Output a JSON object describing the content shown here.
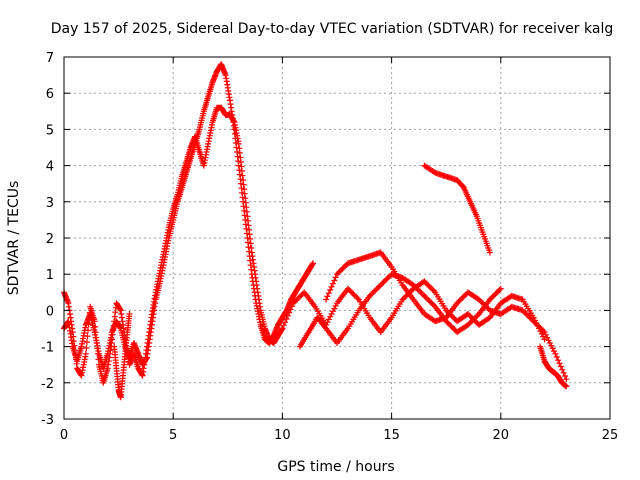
{
  "chart_data": {
    "type": "scatter",
    "title": "Day 157 of 2025, Sidereal Day-to-day VTEC variation (SDTVAR) for receiver kalg",
    "xlabel": "GPS time / hours",
    "ylabel": "SDTVAR / TECUs",
    "xlim": [
      0,
      25
    ],
    "ylim": [
      -3,
      7
    ],
    "xticks": [
      "0",
      "5",
      "10",
      "15",
      "20",
      "25"
    ],
    "yticks": [
      "-3",
      "-2",
      "-1",
      "0",
      "1",
      "2",
      "3",
      "4",
      "5",
      "6",
      "7"
    ],
    "grid": true,
    "marker": "+",
    "color": "#ff0000",
    "series": [
      {
        "name": "main-rise-a",
        "x": [
          0.0,
          0.2,
          0.4,
          0.6,
          0.8,
          1.0,
          1.2,
          1.4,
          1.6,
          1.8,
          2.0,
          2.2,
          2.4,
          2.6,
          2.8,
          3.0,
          3.2,
          3.4,
          3.6,
          3.8,
          4.0,
          4.2,
          4.4,
          4.6,
          4.8,
          5.0,
          5.2,
          5.4,
          5.6,
          5.8,
          6.0,
          6.2,
          6.4,
          6.6,
          6.8,
          7.0,
          7.2,
          7.4,
          7.6,
          7.8,
          8.0,
          8.2,
          8.4,
          8.6,
          8.8,
          9.0,
          9.2,
          9.4,
          9.6,
          9.8,
          10.0,
          10.2,
          10.4,
          10.6,
          10.8,
          11.0,
          11.2,
          11.4
        ],
        "y": [
          -0.5,
          -0.3,
          -1.0,
          -1.4,
          -1.0,
          -0.4,
          -0.1,
          -0.6,
          -1.2,
          -1.6,
          -1.2,
          -0.6,
          -0.3,
          -0.5,
          -1.0,
          -1.3,
          -0.9,
          -1.2,
          -1.5,
          -1.3,
          -0.5,
          0.3,
          0.8,
          1.4,
          2.0,
          2.5,
          3.0,
          3.4,
          3.8,
          4.2,
          4.6,
          5.0,
          5.5,
          5.9,
          6.3,
          6.6,
          6.8,
          6.5,
          5.8,
          5.0,
          4.0,
          3.0,
          2.0,
          1.0,
          0.2,
          -0.4,
          -0.8,
          -0.9,
          -0.7,
          -0.4,
          -0.2,
          0.0,
          0.3,
          0.5,
          0.7,
          0.9,
          1.1,
          1.3
        ]
      },
      {
        "name": "main-rise-b",
        "x": [
          0.0,
          0.2,
          0.4,
          0.6,
          0.8,
          1.0,
          1.2,
          1.4,
          1.6,
          1.8,
          2.0,
          2.2,
          2.4,
          2.6,
          2.8,
          3.0,
          3.2,
          3.4,
          3.6,
          3.8,
          4.0,
          4.2,
          4.4,
          4.6,
          4.8,
          5.0,
          5.2,
          5.4,
          5.6,
          5.8,
          6.0,
          6.2,
          6.4,
          6.6,
          6.8,
          7.0,
          7.2,
          7.4,
          7.6,
          7.8,
          8.0,
          8.2,
          8.4,
          8.6,
          8.8,
          9.0,
          9.2,
          9.4,
          9.6,
          9.8,
          10.0
        ],
        "y": [
          0.5,
          0.2,
          -0.6,
          -1.6,
          -1.8,
          -1.2,
          0.1,
          -0.3,
          -1.5,
          -2.0,
          -1.6,
          -0.8,
          0.2,
          0.0,
          -0.8,
          -1.5,
          -1.2,
          -1.6,
          -1.8,
          -1.0,
          -0.2,
          0.5,
          1.1,
          1.7,
          2.3,
          2.8,
          3.2,
          3.7,
          4.1,
          4.5,
          4.8,
          4.4,
          4.0,
          4.6,
          5.2,
          5.6,
          5.6,
          5.4,
          5.4,
          5.2,
          4.6,
          3.6,
          2.6,
          1.6,
          0.8,
          0.0,
          -0.5,
          -0.8,
          -0.9,
          -0.7,
          -0.5
        ]
      },
      {
        "name": "dip-2-5",
        "x": [
          2.3,
          2.4,
          2.5,
          2.6,
          2.7,
          2.8,
          2.9,
          3.0
        ],
        "y": [
          -1.0,
          -1.6,
          -2.2,
          -2.4,
          -1.8,
          -1.2,
          -0.6,
          -0.1
        ]
      },
      {
        "name": "mid-wave-a",
        "x": [
          10.0,
          10.5,
          11.0,
          11.5,
          12.0,
          12.5,
          13.0,
          13.5,
          14.0,
          14.5,
          15.0,
          15.5,
          16.0,
          16.5,
          17.0,
          17.5,
          18.0,
          18.5,
          19.0,
          19.5,
          20.0,
          20.5,
          21.0,
          21.5,
          22.0
        ],
        "y": [
          -0.5,
          0.2,
          0.5,
          0.1,
          -0.4,
          0.2,
          0.6,
          0.3,
          -0.2,
          -0.6,
          -0.2,
          0.3,
          0.6,
          0.8,
          0.5,
          0.0,
          -0.3,
          -0.1,
          -0.4,
          -0.2,
          0.2,
          0.4,
          0.3,
          -0.2,
          -0.8
        ]
      },
      {
        "name": "mid-wave-b",
        "x": [
          12.0,
          12.5,
          13.0,
          13.5,
          14.0,
          14.5,
          15.0,
          15.5,
          16.0,
          16.5,
          17.0,
          17.5,
          18.0,
          18.5,
          19.0,
          19.5,
          20.0,
          20.5,
          21.0,
          21.5,
          22.0,
          22.5,
          23.0
        ],
        "y": [
          0.3,
          1.0,
          1.3,
          1.4,
          1.5,
          1.6,
          1.2,
          0.7,
          0.3,
          -0.1,
          -0.3,
          -0.2,
          0.2,
          0.5,
          0.3,
          0.0,
          -0.1,
          0.1,
          0.0,
          -0.3,
          -0.6,
          -1.2,
          -1.9
        ]
      },
      {
        "name": "mid-wave-c",
        "x": [
          10.8,
          11.2,
          11.6,
          12.0,
          12.5,
          13.0,
          13.5,
          14.0,
          14.5,
          15.0,
          15.5,
          16.0,
          16.5,
          17.0,
          17.5,
          18.0,
          18.5,
          19.0,
          19.5,
          20.0
        ],
        "y": [
          -1.0,
          -0.6,
          -0.2,
          -0.5,
          -0.9,
          -0.5,
          0.0,
          0.4,
          0.7,
          1.0,
          0.9,
          0.7,
          0.4,
          0.1,
          -0.3,
          -0.6,
          -0.4,
          -0.1,
          0.3,
          0.6
        ]
      },
      {
        "name": "late-segment",
        "x": [
          16.5,
          17.0,
          17.5,
          18.0,
          18.3,
          18.6,
          18.9,
          19.2,
          19.5
        ],
        "y": [
          4.0,
          3.8,
          3.7,
          3.6,
          3.4,
          3.0,
          2.6,
          2.1,
          1.6
        ]
      },
      {
        "name": "tail",
        "x": [
          21.8,
          22.0,
          22.2,
          22.4,
          22.6,
          22.8,
          23.0
        ],
        "y": [
          -1.0,
          -1.4,
          -1.6,
          -1.7,
          -1.8,
          -2.0,
          -2.1
        ]
      }
    ]
  }
}
